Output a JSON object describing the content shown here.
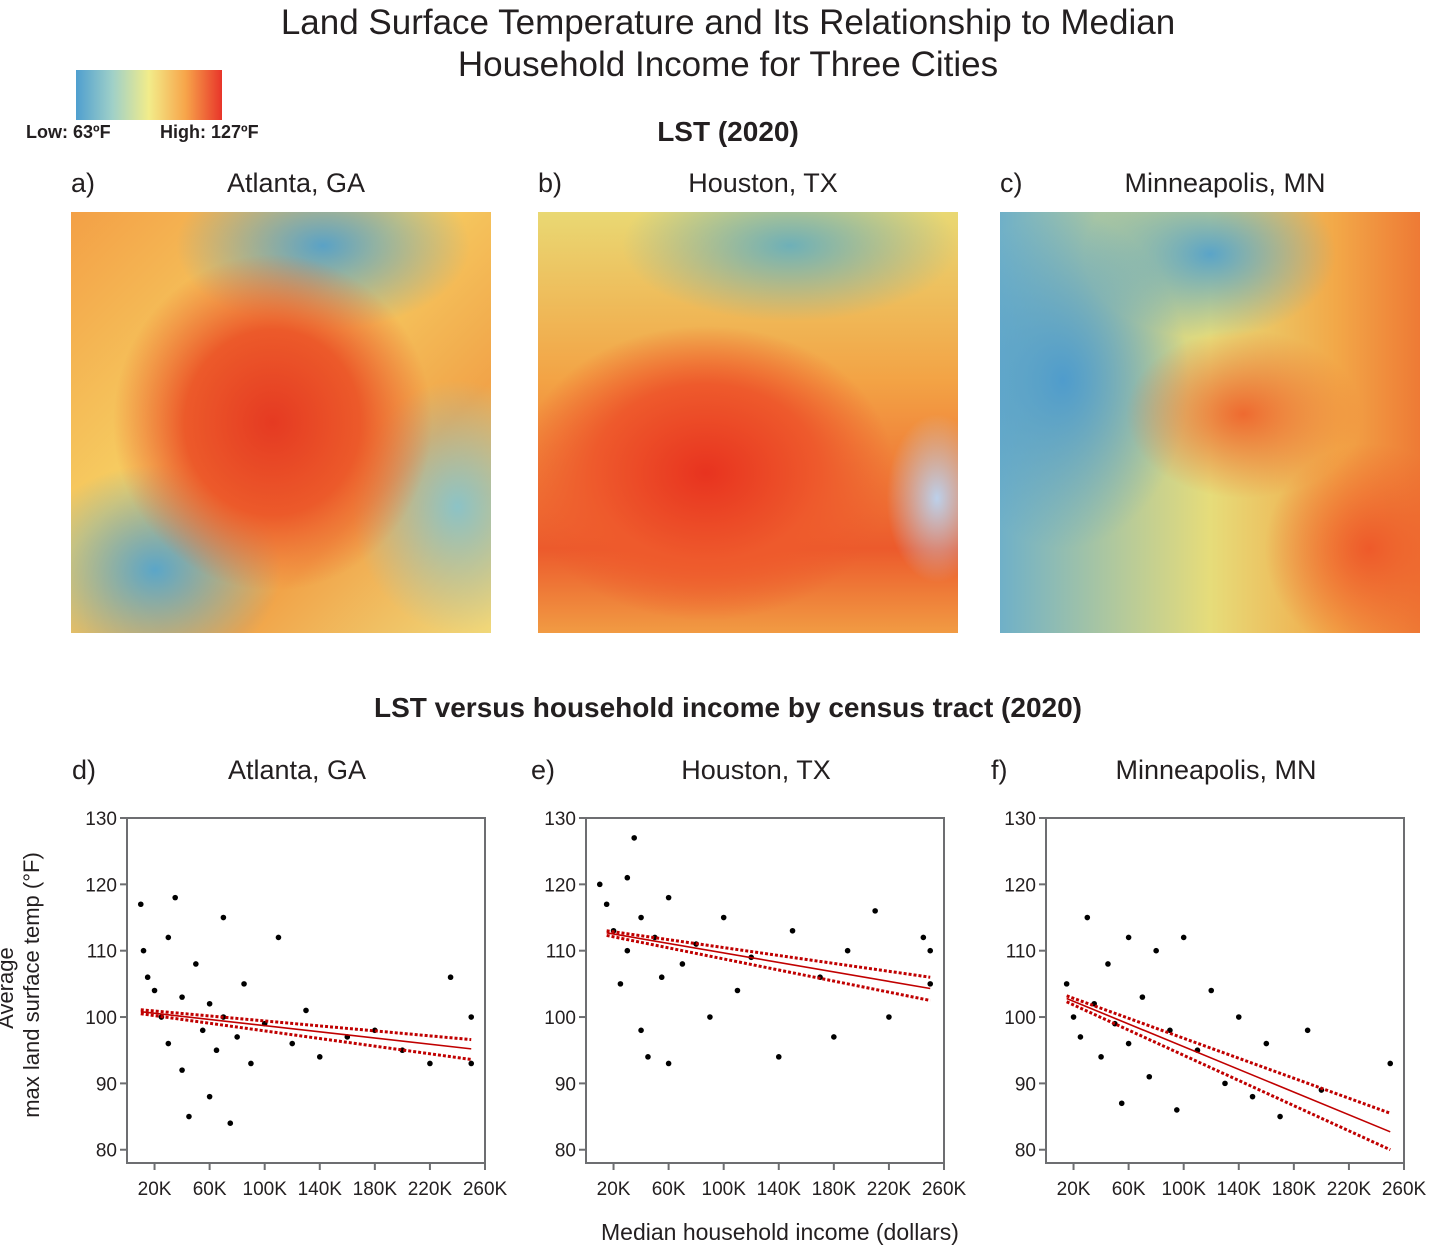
{
  "title": "Land Surface Temperature and Its Relationship to Median Household Income for Three Cities",
  "colorbar": {
    "colors": [
      "#4f9fcf",
      "#9fd0c8",
      "#f2ec8a",
      "#f7a54a",
      "#e8352a"
    ],
    "low_label": "Low: 63ºF",
    "high_label": "High: 127ºF"
  },
  "maps": {
    "title": "LST (2020)",
    "panels": [
      {
        "label": "a)",
        "city": "Atlanta, GA"
      },
      {
        "label": "b)",
        "city": "Houston, TX"
      },
      {
        "label": "c)",
        "city": "Minneapolis, MN"
      }
    ]
  },
  "charts_title": "LST versus household income by census tract (2020)",
  "y_label": [
    "Average",
    "max land surface temp (°F)"
  ],
  "x_label": "Median household income (dollars)",
  "chart_data": [
    {
      "type": "scatter",
      "panel": "d)",
      "title": "Atlanta, GA",
      "xlim": [
        0,
        260000
      ],
      "ylim": [
        78,
        130
      ],
      "xticks": [
        {
          "value": 20000,
          "label": "20K"
        },
        {
          "value": 60000,
          "label": "60K"
        },
        {
          "value": 100000,
          "label": "100K"
        },
        {
          "value": 140000,
          "label": "140K"
        },
        {
          "value": 180000,
          "label": "180K"
        },
        {
          "value": 220000,
          "label": "220K"
        },
        {
          "value": 260000,
          "label": "260K"
        }
      ],
      "yticks": [
        80,
        90,
        100,
        110,
        120,
        130
      ],
      "point_color": "#000000",
      "points": {
        "x": [
          10000,
          12000,
          15000,
          20000,
          25000,
          30000,
          30000,
          35000,
          40000,
          40000,
          45000,
          50000,
          55000,
          60000,
          60000,
          65000,
          70000,
          70000,
          75000,
          80000,
          85000,
          90000,
          100000,
          110000,
          120000,
          130000,
          140000,
          160000,
          180000,
          200000,
          220000,
          235000,
          250000,
          250000
        ],
        "y": [
          117,
          110,
          106,
          104,
          100,
          96,
          112,
          118,
          92,
          103,
          85,
          108,
          98,
          102,
          88,
          95,
          115,
          100,
          84,
          97,
          105,
          93,
          99,
          112,
          96,
          101,
          94,
          97,
          98,
          95,
          93,
          106,
          100,
          93
        ]
      },
      "lines": [
        {
          "x": [
            10000,
            250000
          ],
          "values": [
            100.8,
            95.2
          ],
          "color": "#c00000",
          "style": "solid"
        },
        {
          "x": [
            10000,
            250000
          ],
          "values": [
            101.1,
            96.6
          ],
          "color": "#c00000",
          "style": "dotted"
        },
        {
          "x": [
            10000,
            250000
          ],
          "values": [
            100.5,
            93.6
          ],
          "color": "#c00000",
          "style": "dotted"
        }
      ]
    },
    {
      "type": "scatter",
      "panel": "e)",
      "title": "Houston, TX",
      "xlim": [
        0,
        260000
      ],
      "ylim": [
        78,
        130
      ],
      "xticks": [
        {
          "value": 20000,
          "label": "20K"
        },
        {
          "value": 60000,
          "label": "60K"
        },
        {
          "value": 100000,
          "label": "100K"
        },
        {
          "value": 140000,
          "label": "140K"
        },
        {
          "value": 180000,
          "label": "180K"
        },
        {
          "value": 220000,
          "label": "220K"
        },
        {
          "value": 260000,
          "label": "260K"
        }
      ],
      "yticks": [
        80,
        90,
        100,
        110,
        120,
        130
      ],
      "point_color": "#000000",
      "points": {
        "x": [
          10000,
          15000,
          20000,
          25000,
          30000,
          30000,
          35000,
          40000,
          40000,
          45000,
          50000,
          55000,
          60000,
          60000,
          70000,
          80000,
          90000,
          100000,
          110000,
          120000,
          140000,
          150000,
          170000,
          180000,
          190000,
          210000,
          220000,
          245000,
          250000,
          250000
        ],
        "y": [
          120,
          117,
          113,
          105,
          121,
          110,
          127,
          98,
          115,
          94,
          112,
          106,
          93,
          118,
          108,
          111,
          100,
          115,
          104,
          109,
          94,
          113,
          106,
          97,
          110,
          116,
          100,
          112,
          105,
          110
        ]
      },
      "lines": [
        {
          "x": [
            15000,
            250000
          ],
          "values": [
            112.7,
            104.3
          ],
          "color": "#c00000",
          "style": "solid"
        },
        {
          "x": [
            15000,
            250000
          ],
          "values": [
            113.0,
            106.0
          ],
          "color": "#c00000",
          "style": "dotted"
        },
        {
          "x": [
            15000,
            250000
          ],
          "values": [
            112.3,
            102.5
          ],
          "color": "#c00000",
          "style": "dotted"
        }
      ]
    },
    {
      "type": "scatter",
      "panel": "f)",
      "title": "Minneapolis, MN",
      "xlim": [
        0,
        260000
      ],
      "ylim": [
        78,
        130
      ],
      "xticks": [
        {
          "value": 20000,
          "label": "20K"
        },
        {
          "value": 60000,
          "label": "60K"
        },
        {
          "value": 100000,
          "label": "100K"
        },
        {
          "value": 140000,
          "label": "140K"
        },
        {
          "value": 180000,
          "label": "180K"
        },
        {
          "value": 220000,
          "label": "220K"
        },
        {
          "value": 260000,
          "label": "260K"
        }
      ],
      "yticks": [
        80,
        90,
        100,
        110,
        120,
        130
      ],
      "point_color": "#000000",
      "points": {
        "x": [
          15000,
          20000,
          25000,
          30000,
          35000,
          40000,
          45000,
          50000,
          55000,
          60000,
          60000,
          70000,
          75000,
          80000,
          90000,
          95000,
          100000,
          110000,
          120000,
          130000,
          140000,
          150000,
          160000,
          170000,
          190000,
          200000,
          250000
        ],
        "y": [
          105,
          100,
          97,
          115,
          102,
          94,
          108,
          99,
          87,
          112,
          96,
          103,
          91,
          110,
          98,
          86,
          112,
          95,
          104,
          90,
          100,
          88,
          96,
          85,
          98,
          89,
          93
        ]
      },
      "lines": [
        {
          "x": [
            15000,
            250000
          ],
          "values": [
            102.8,
            82.7
          ],
          "color": "#c00000",
          "style": "solid"
        },
        {
          "x": [
            15000,
            250000
          ],
          "values": [
            103.2,
            85.5
          ],
          "color": "#c00000",
          "style": "dotted"
        },
        {
          "x": [
            15000,
            250000
          ],
          "values": [
            102.3,
            80.0
          ],
          "color": "#c00000",
          "style": "dotted"
        }
      ]
    }
  ]
}
